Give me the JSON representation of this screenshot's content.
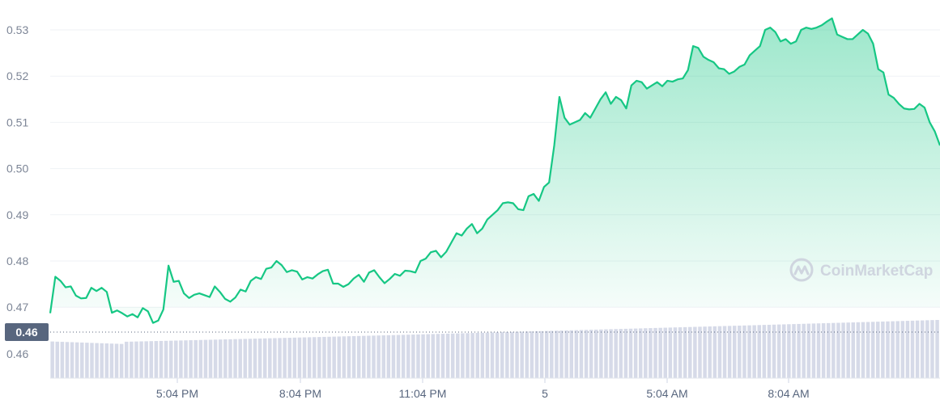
{
  "chart_data": {
    "type": "line",
    "title": "",
    "xlabel": "",
    "ylabel": "",
    "ylim": [
      0.464,
      0.5355
    ],
    "yticks": [
      "0.53",
      "0.52",
      "0.51",
      "0.50",
      "0.49",
      "0.48",
      "0.47"
    ],
    "ytick_values": [
      0.53,
      0.52,
      0.51,
      0.5,
      0.49,
      0.48,
      0.47
    ],
    "xticks": [
      {
        "label": "5:04 PM",
        "bold": false
      },
      {
        "label": "8:04 PM",
        "bold": false
      },
      {
        "label": "11:04 PM",
        "bold": false
      },
      {
        "label": "5",
        "bold": false
      },
      {
        "label": "5:04 AM",
        "bold": false
      },
      {
        "label": "8:04 AM",
        "bold": false
      }
    ],
    "current_price_label": "0.46",
    "volume_axis_label": "0.46",
    "current_price_value": 0.4642,
    "grid": true,
    "line_color": "#16c784",
    "series": [
      {
        "values": [
          0.4687,
          0.4766,
          0.4757,
          0.4743,
          0.4745,
          0.4725,
          0.4719,
          0.472,
          0.4742,
          0.4735,
          0.4742,
          0.4733,
          0.4688,
          0.4693,
          0.4687,
          0.468,
          0.4685,
          0.4678,
          0.4698,
          0.4691,
          0.4666,
          0.4671,
          0.4695,
          0.479,
          0.4755,
          0.4757,
          0.473,
          0.472,
          0.4727,
          0.473,
          0.4726,
          0.4722,
          0.4745,
          0.4733,
          0.4718,
          0.4712,
          0.4721,
          0.4738,
          0.4734,
          0.4757,
          0.4765,
          0.4761,
          0.4783,
          0.4786,
          0.48,
          0.4791,
          0.4776,
          0.478,
          0.4777,
          0.476,
          0.4765,
          0.4762,
          0.4771,
          0.4778,
          0.4781,
          0.4751,
          0.4751,
          0.4744,
          0.475,
          0.4762,
          0.477,
          0.4755,
          0.4775,
          0.478,
          0.4765,
          0.4752,
          0.4761,
          0.4772,
          0.4768,
          0.4779,
          0.4778,
          0.4775,
          0.48,
          0.4805,
          0.4819,
          0.4822,
          0.4808,
          0.482,
          0.484,
          0.486,
          0.4855,
          0.487,
          0.488,
          0.486,
          0.487,
          0.489,
          0.49,
          0.491,
          0.4925,
          0.4927,
          0.4925,
          0.4912,
          0.491,
          0.494,
          0.4945,
          0.493,
          0.496,
          0.497,
          0.505,
          0.5155,
          0.511,
          0.5095,
          0.51,
          0.5105,
          0.512,
          0.511,
          0.513,
          0.515,
          0.5165,
          0.514,
          0.5155,
          0.5148,
          0.513,
          0.518,
          0.519,
          0.5187,
          0.5173,
          0.518,
          0.5187,
          0.5178,
          0.519,
          0.5188,
          0.5193,
          0.5195,
          0.5213,
          0.5265,
          0.5261,
          0.5242,
          0.5235,
          0.523,
          0.5217,
          0.5215,
          0.5205,
          0.521,
          0.522,
          0.5225,
          0.5245,
          0.5255,
          0.5265,
          0.53,
          0.5305,
          0.5295,
          0.5275,
          0.528,
          0.527,
          0.5275,
          0.53,
          0.5305,
          0.5302,
          0.5305,
          0.531,
          0.5318,
          0.5325,
          0.529,
          0.5285,
          0.528,
          0.528,
          0.529,
          0.53,
          0.5292,
          0.527,
          0.5215,
          0.5208,
          0.516,
          0.5153,
          0.514,
          0.513,
          0.5128,
          0.5129,
          0.514,
          0.5132,
          0.51,
          0.508,
          0.505
        ]
      }
    ],
    "volume": {
      "bars": 180,
      "start_level": 0.6,
      "end_level": 1.0
    }
  },
  "watermark": {
    "text": "CoinMarketCap",
    "icon": "coinmarketcap-logo-icon"
  },
  "colors": {
    "line": "#16c784",
    "fill": "#16c784",
    "grid": "#eff2f5",
    "volume": "#d6dae8",
    "price_tag_bg": "#58667e",
    "axis_text": "#58667e"
  }
}
